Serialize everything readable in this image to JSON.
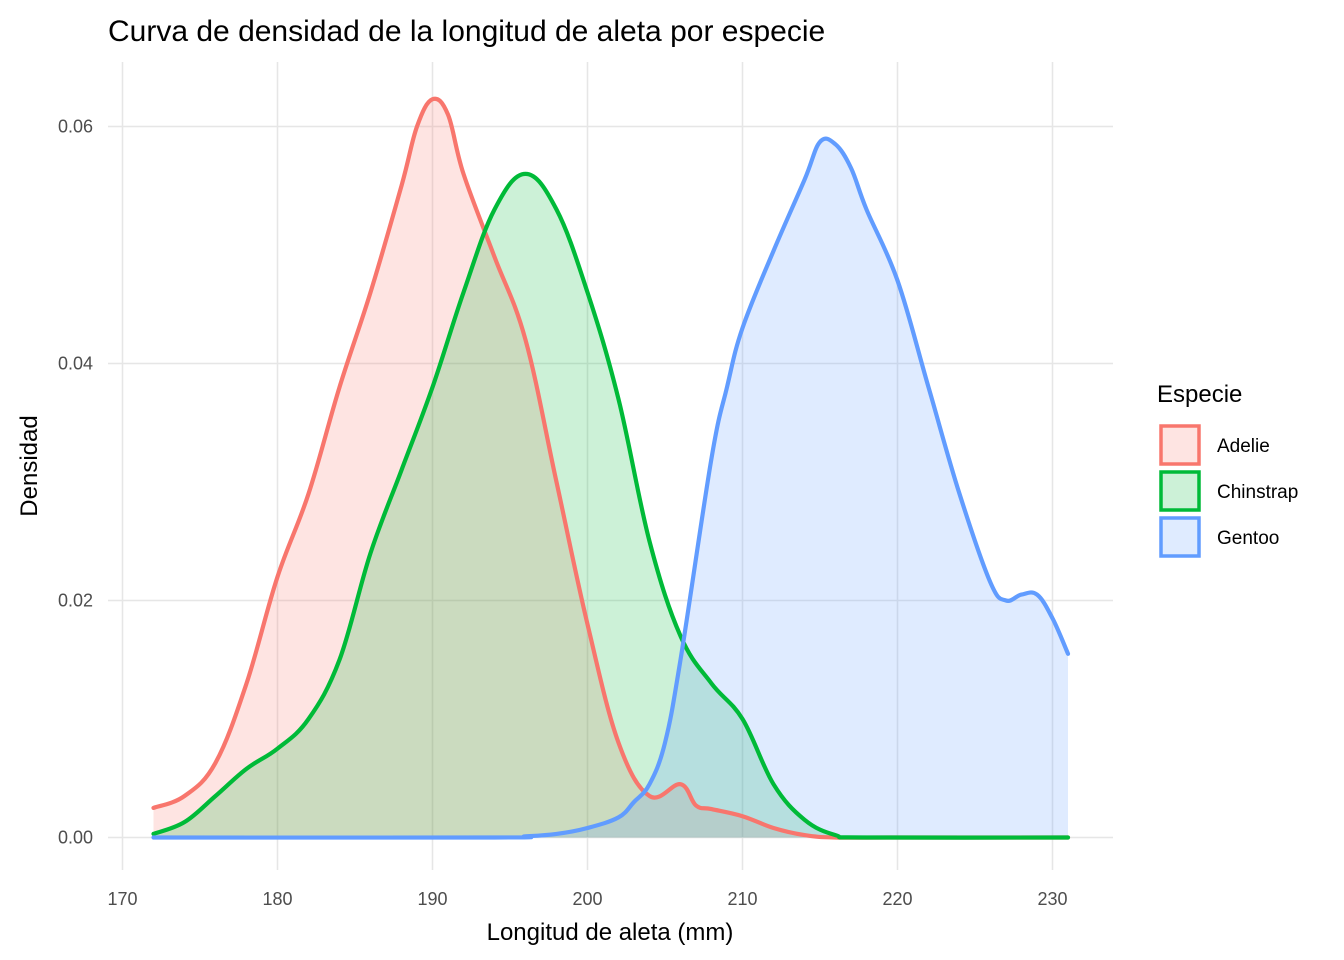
{
  "chart_data": {
    "type": "area",
    "title": "Curva de densidad de la longitud de aleta por especie",
    "xlabel": "Longitud de aleta (mm)",
    "ylabel": "Densidad",
    "xlim": [
      172,
      231
    ],
    "ylim": [
      0,
      0.063
    ],
    "x_ticks": [
      170,
      180,
      190,
      200,
      210,
      220,
      230
    ],
    "y_ticks": [
      0.0,
      0.02,
      0.04,
      0.06
    ],
    "x_tick_labels": [
      "170",
      "180",
      "190",
      "200",
      "210",
      "220",
      "230"
    ],
    "y_tick_labels": [
      "0.00",
      "0.02",
      "0.04",
      "0.06"
    ],
    "grid": true,
    "legend": {
      "title": "Especie",
      "position": "right"
    },
    "fill_alpha": 0.2,
    "series": [
      {
        "name": "Adelie",
        "color": "#F8766D",
        "points": [
          [
            172,
            0.0025
          ],
          [
            174,
            0.0035
          ],
          [
            176,
            0.0063
          ],
          [
            178,
            0.013
          ],
          [
            180,
            0.022
          ],
          [
            182,
            0.029
          ],
          [
            184,
            0.038
          ],
          [
            186,
            0.046
          ],
          [
            188,
            0.055
          ],
          [
            189,
            0.06
          ],
          [
            190,
            0.0623
          ],
          [
            191,
            0.061
          ],
          [
            192,
            0.056
          ],
          [
            194,
            0.049
          ],
          [
            196,
            0.042
          ],
          [
            198,
            0.03
          ],
          [
            200,
            0.018
          ],
          [
            202,
            0.008
          ],
          [
            204,
            0.0035
          ],
          [
            206,
            0.0045
          ],
          [
            207,
            0.0027
          ],
          [
            208,
            0.0024
          ],
          [
            210,
            0.0018
          ],
          [
            212,
            0.0008
          ],
          [
            214,
            0.0002
          ],
          [
            216,
            0.0
          ],
          [
            220,
            0.0
          ],
          [
            231,
            0.0
          ]
        ]
      },
      {
        "name": "Chinstrap",
        "color": "#00BA38",
        "points": [
          [
            172,
            0.0003
          ],
          [
            174,
            0.0013
          ],
          [
            176,
            0.0035
          ],
          [
            178,
            0.0058
          ],
          [
            180,
            0.0075
          ],
          [
            182,
            0.01
          ],
          [
            184,
            0.015
          ],
          [
            186,
            0.024
          ],
          [
            188,
            0.031
          ],
          [
            190,
            0.038
          ],
          [
            192,
            0.046
          ],
          [
            194,
            0.053
          ],
          [
            196,
            0.056
          ],
          [
            198,
            0.053
          ],
          [
            200,
            0.046
          ],
          [
            202,
            0.037
          ],
          [
            204,
            0.025
          ],
          [
            206,
            0.017
          ],
          [
            208,
            0.013
          ],
          [
            210,
            0.01
          ],
          [
            212,
            0.0045
          ],
          [
            214,
            0.0015
          ],
          [
            216,
            0.0002
          ],
          [
            218,
            0.0
          ],
          [
            231,
            0.0
          ]
        ]
      },
      {
        "name": "Gentoo",
        "color": "#619CFF",
        "points": [
          [
            172,
            0.0
          ],
          [
            194,
            0.0
          ],
          [
            196,
            0.0001
          ],
          [
            198,
            0.0003
          ],
          [
            200,
            0.0008
          ],
          [
            202,
            0.0017
          ],
          [
            203,
            0.003
          ],
          [
            204,
            0.0045
          ],
          [
            205,
            0.008
          ],
          [
            206,
            0.015
          ],
          [
            208,
            0.032
          ],
          [
            209,
            0.038
          ],
          [
            210,
            0.043
          ],
          [
            212,
            0.0495
          ],
          [
            214,
            0.0555
          ],
          [
            215,
            0.0587
          ],
          [
            216,
            0.0585
          ],
          [
            217,
            0.0565
          ],
          [
            218,
            0.053
          ],
          [
            220,
            0.047
          ],
          [
            222,
            0.038
          ],
          [
            224,
            0.029
          ],
          [
            226,
            0.0215
          ],
          [
            227,
            0.02
          ],
          [
            228,
            0.0205
          ],
          [
            229,
            0.0205
          ],
          [
            230,
            0.0185
          ],
          [
            231,
            0.0155
          ]
        ]
      }
    ]
  }
}
